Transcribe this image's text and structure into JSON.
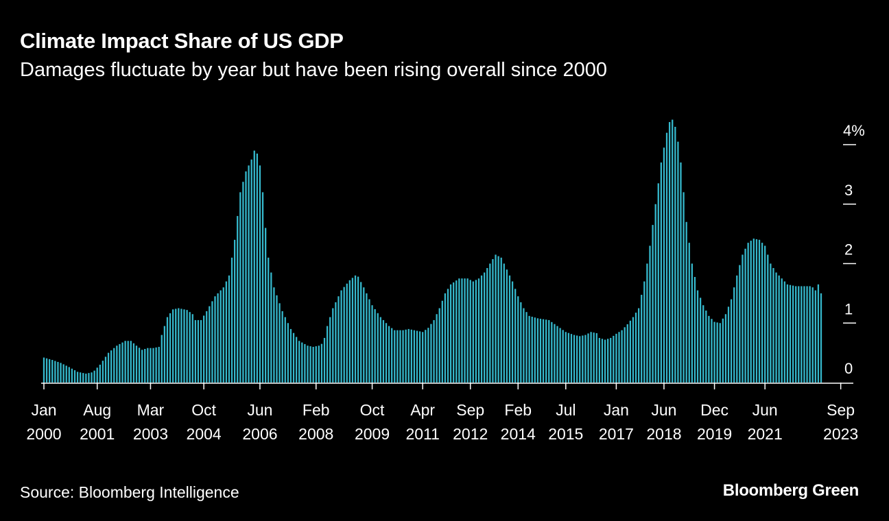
{
  "title": "Climate Impact Share of US GDP",
  "subtitle": "Damages fluctuate by year but have been rising overall since 2000",
  "source": "Source: Bloomberg Intelligence",
  "brand": "Bloomberg Green",
  "colors": {
    "background": "#000000",
    "bar": "#35b8cc",
    "text": "#ffffff",
    "axis": "#ffffff"
  },
  "chart_data": {
    "type": "bar",
    "title": "Climate Impact Share of US GDP",
    "subtitle": "Damages fluctuate by year but have been rising overall since 2000",
    "xlabel": "",
    "ylabel": "",
    "ylim": [
      0,
      4.5
    ],
    "grid": false,
    "y_axis_position": "right",
    "y_ticks": [
      0,
      1,
      2,
      3,
      4
    ],
    "y_tick_labels": [
      "0",
      "1",
      "2",
      "3",
      "4%"
    ],
    "x_ticks": [
      {
        "index": 0,
        "month": "Jan",
        "year": "2000"
      },
      {
        "index": 19,
        "month": "Aug",
        "year": "2001"
      },
      {
        "index": 38,
        "month": "Mar",
        "year": "2003"
      },
      {
        "index": 57,
        "month": "Oct",
        "year": "2004"
      },
      {
        "index": 77,
        "month": "Jun",
        "year": "2006"
      },
      {
        "index": 97,
        "month": "Feb",
        "year": "2008"
      },
      {
        "index": 117,
        "month": "Oct",
        "year": "2009"
      },
      {
        "index": 135,
        "month": "Apr",
        "year": "2011"
      },
      {
        "index": 152,
        "month": "Sep",
        "year": "2012"
      },
      {
        "index": 169,
        "month": "Feb",
        "year": "2014"
      },
      {
        "index": 186,
        "month": "Jul",
        "year": "2015"
      },
      {
        "index": 204,
        "month": "Jan",
        "year": "2017"
      },
      {
        "index": 221,
        "month": "Jun",
        "year": "2018"
      },
      {
        "index": 239,
        "month": "Dec",
        "year": "2019"
      },
      {
        "index": 257,
        "month": "Jun",
        "year": "2021"
      },
      {
        "index": 284,
        "month": "Sep",
        "year": "2023"
      }
    ],
    "start": "Jan 2000",
    "end": "Sep 2023",
    "frequency": "monthly",
    "anchors": [
      [
        0,
        0.42
      ],
      [
        3,
        0.38
      ],
      [
        6,
        0.33
      ],
      [
        9,
        0.26
      ],
      [
        12,
        0.18
      ],
      [
        15,
        0.15
      ],
      [
        17,
        0.17
      ],
      [
        18,
        0.2
      ],
      [
        20,
        0.3
      ],
      [
        23,
        0.5
      ],
      [
        26,
        0.62
      ],
      [
        29,
        0.7
      ],
      [
        31,
        0.7
      ],
      [
        33,
        0.62
      ],
      [
        35,
        0.55
      ],
      [
        37,
        0.58
      ],
      [
        39,
        0.58
      ],
      [
        41,
        0.6
      ],
      [
        42,
        0.8
      ],
      [
        44,
        1.1
      ],
      [
        46,
        1.23
      ],
      [
        48,
        1.25
      ],
      [
        51,
        1.22
      ],
      [
        53,
        1.15
      ],
      [
        54,
        1.05
      ],
      [
        56,
        1.05
      ],
      [
        58,
        1.2
      ],
      [
        61,
        1.45
      ],
      [
        64,
        1.6
      ],
      [
        66,
        1.8
      ],
      [
        68,
        2.4
      ],
      [
        70,
        3.2
      ],
      [
        72,
        3.55
      ],
      [
        74,
        3.75
      ],
      [
        75,
        3.9
      ],
      [
        76,
        3.85
      ],
      [
        77,
        3.65
      ],
      [
        78,
        3.2
      ],
      [
        79,
        2.6
      ],
      [
        80,
        2.1
      ],
      [
        82,
        1.6
      ],
      [
        85,
        1.2
      ],
      [
        88,
        0.9
      ],
      [
        91,
        0.7
      ],
      [
        94,
        0.62
      ],
      [
        96,
        0.6
      ],
      [
        98,
        0.62
      ],
      [
        99,
        0.65
      ],
      [
        100,
        0.75
      ],
      [
        101,
        0.95
      ],
      [
        103,
        1.25
      ],
      [
        106,
        1.55
      ],
      [
        109,
        1.72
      ],
      [
        111,
        1.8
      ],
      [
        112,
        1.78
      ],
      [
        114,
        1.6
      ],
      [
        117,
        1.3
      ],
      [
        120,
        1.1
      ],
      [
        123,
        0.95
      ],
      [
        125,
        0.88
      ],
      [
        128,
        0.88
      ],
      [
        130,
        0.9
      ],
      [
        133,
        0.87
      ],
      [
        135,
        0.85
      ],
      [
        137,
        0.92
      ],
      [
        139,
        1.05
      ],
      [
        141,
        1.25
      ],
      [
        143,
        1.5
      ],
      [
        145,
        1.65
      ],
      [
        148,
        1.75
      ],
      [
        151,
        1.75
      ],
      [
        153,
        1.7
      ],
      [
        155,
        1.75
      ],
      [
        157,
        1.85
      ],
      [
        159,
        2.0
      ],
      [
        161,
        2.15
      ],
      [
        163,
        2.1
      ],
      [
        165,
        1.9
      ],
      [
        167,
        1.7
      ],
      [
        169,
        1.45
      ],
      [
        171,
        1.25
      ],
      [
        173,
        1.12
      ],
      [
        176,
        1.08
      ],
      [
        180,
        1.05
      ],
      [
        183,
        0.95
      ],
      [
        186,
        0.85
      ],
      [
        189,
        0.8
      ],
      [
        191,
        0.78
      ],
      [
        193,
        0.8
      ],
      [
        195,
        0.85
      ],
      [
        197,
        0.83
      ],
      [
        198,
        0.75
      ],
      [
        200,
        0.72
      ],
      [
        202,
        0.75
      ],
      [
        204,
        0.82
      ],
      [
        206,
        0.88
      ],
      [
        208,
        0.98
      ],
      [
        210,
        1.1
      ],
      [
        212,
        1.25
      ],
      [
        214,
        1.7
      ],
      [
        216,
        2.3
      ],
      [
        218,
        3.0
      ],
      [
        220,
        3.7
      ],
      [
        222,
        4.2
      ],
      [
        223,
        4.38
      ],
      [
        224,
        4.42
      ],
      [
        225,
        4.3
      ],
      [
        226,
        4.05
      ],
      [
        227,
        3.7
      ],
      [
        228,
        3.2
      ],
      [
        229,
        2.7
      ],
      [
        231,
        2.0
      ],
      [
        233,
        1.55
      ],
      [
        235,
        1.3
      ],
      [
        237,
        1.12
      ],
      [
        239,
        1.02
      ],
      [
        241,
        1.0
      ],
      [
        243,
        1.15
      ],
      [
        245,
        1.4
      ],
      [
        247,
        1.8
      ],
      [
        249,
        2.15
      ],
      [
        251,
        2.35
      ],
      [
        253,
        2.42
      ],
      [
        255,
        2.4
      ],
      [
        257,
        2.3
      ],
      [
        259,
        2.0
      ],
      [
        261,
        1.85
      ],
      [
        263,
        1.75
      ],
      [
        265,
        1.65
      ],
      [
        268,
        1.62
      ],
      [
        271,
        1.62
      ],
      [
        273,
        1.62
      ],
      [
        274,
        1.6
      ],
      [
        275,
        1.55
      ],
      [
        276,
        1.65
      ],
      [
        277,
        1.5
      ]
    ]
  }
}
